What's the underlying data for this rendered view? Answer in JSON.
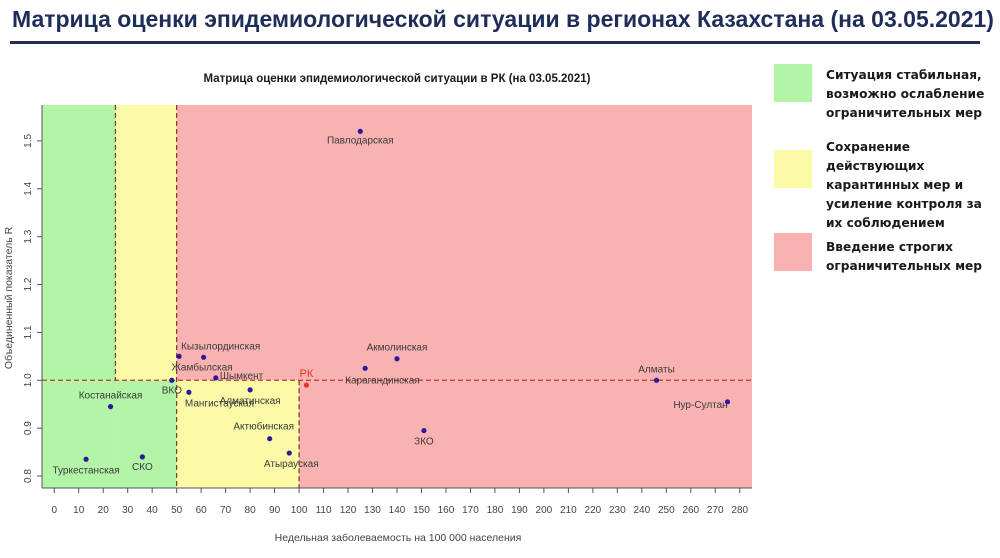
{
  "page": {
    "title": "Матрица оценки эпидемиологической ситуации в регионах Казахстана (на 03.05.2021)"
  },
  "legend": [
    {
      "label": "Ситуация стабильная, возможно ослабление ограничительных мер",
      "color": "#b2f5a7"
    },
    {
      "label": "Сохранение действующих карантинных мер и усиление контроля за их соблюдением",
      "color": "#fbfba7"
    },
    {
      "label": "Введение строгих ограничительных мер",
      "color": "#f9b2b2"
    }
  ],
  "chart_data": {
    "type": "scatter",
    "title": "Матрица оценки эпидемиологической ситуации в РК (на 03.05.2021)",
    "xlabel": "Недельная заболеваемость на 100 000 населения",
    "ylabel": "Объединенный показатель R",
    "xlim": [
      -5,
      285
    ],
    "ylim": [
      0.775,
      1.575
    ],
    "x_ticks": [
      "0",
      "10",
      "20",
      "30",
      "40",
      "50",
      "60",
      "70",
      "80",
      "90",
      "100",
      "110",
      "120",
      "130",
      "140",
      "150",
      "160",
      "170",
      "180",
      "190",
      "200",
      "210",
      "220",
      "230",
      "240",
      "250",
      "260",
      "270",
      "280"
    ],
    "y_ticks": [
      "0.8",
      "0.9",
      "1.0",
      "1.1",
      "1.2",
      "1.3",
      "1.4",
      "1.5"
    ],
    "reference_lines": {
      "x_dashed": [
        25,
        50,
        100
      ],
      "y_dashed": [
        1.0
      ]
    },
    "zones": [
      {
        "name": "green",
        "color": "#b2f5a7"
      },
      {
        "name": "yellow",
        "color": "#fbfba7"
      },
      {
        "name": "red",
        "color": "#f9b2b2"
      }
    ],
    "point_color": "#2b1a9a",
    "highlight_color": "#e8302a",
    "points": [
      {
        "label": "Павлодарская",
        "x": 125,
        "y": 1.52,
        "highlight": false
      },
      {
        "label": "Кызылординская",
        "x": 51,
        "y": 1.05,
        "highlight": false
      },
      {
        "label": "Жамбылская",
        "x": 61,
        "y": 1.048,
        "highlight": false
      },
      {
        "label": "ВКО",
        "x": 48,
        "y": 1.0,
        "highlight": false
      },
      {
        "label": "Шымкент",
        "x": 66,
        "y": 1.005,
        "highlight": false
      },
      {
        "label": "Мангистауская",
        "x": 55,
        "y": 0.975,
        "highlight": false
      },
      {
        "label": "Алматинская",
        "x": 80,
        "y": 0.98,
        "highlight": false
      },
      {
        "label": "Акмолинская",
        "x": 140,
        "y": 1.045,
        "highlight": false
      },
      {
        "label": "Карагандинская",
        "x": 127,
        "y": 1.025,
        "highlight": false
      },
      {
        "label": "РК",
        "x": 103,
        "y": 0.99,
        "highlight": true
      },
      {
        "label": "Костанайская",
        "x": 23,
        "y": 0.945,
        "highlight": false
      },
      {
        "label": "Туркестанская",
        "x": 13,
        "y": 0.835,
        "highlight": false
      },
      {
        "label": "СКО",
        "x": 36,
        "y": 0.84,
        "highlight": false
      },
      {
        "label": "Актюбинская",
        "x": 88,
        "y": 0.878,
        "highlight": false
      },
      {
        "label": "Атырауская",
        "x": 96,
        "y": 0.848,
        "highlight": false
      },
      {
        "label": "ЗКО",
        "x": 151,
        "y": 0.895,
        "highlight": false
      },
      {
        "label": "Алматы",
        "x": 246,
        "y": 1.0,
        "highlight": false
      },
      {
        "label": "Нур-Султан",
        "x": 275,
        "y": 0.955,
        "highlight": false
      }
    ]
  }
}
